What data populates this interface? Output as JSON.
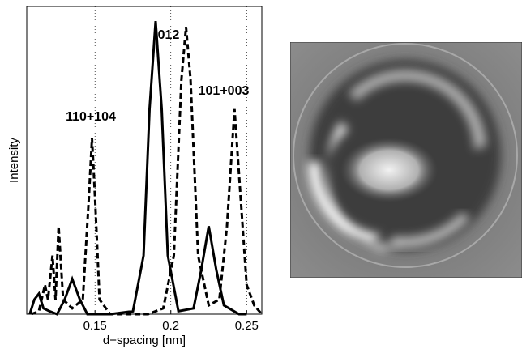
{
  "chart_data": {
    "type": "line",
    "xlabel": "d−spacing [nm]",
    "ylabel": "Intensity",
    "xlim": [
      0.105,
      0.26
    ],
    "ylim": [
      0,
      1.05
    ],
    "xticks": [
      0.15,
      0.2,
      0.25
    ],
    "grid": true,
    "annotations": [
      "110+104",
      "012",
      "101+003"
    ],
    "series": [
      {
        "color": "#000000",
        "dash": "solid",
        "x": [
          0.107,
          0.11,
          0.113,
          0.116,
          0.12,
          0.125,
          0.13,
          0.135,
          0.14,
          0.145,
          0.16,
          0.175,
          0.182,
          0.186,
          0.19,
          0.194,
          0.198,
          0.205,
          0.215,
          0.22,
          0.225,
          0.23,
          0.235,
          0.245,
          0.25
        ],
        "values": [
          0.0,
          0.05,
          0.07,
          0.02,
          0.01,
          0.0,
          0.05,
          0.12,
          0.05,
          0.0,
          0.0,
          0.01,
          0.2,
          0.7,
          1.0,
          0.7,
          0.2,
          0.01,
          0.02,
          0.15,
          0.3,
          0.15,
          0.03,
          0.0,
          0.0
        ]
      },
      {
        "color": "#000000",
        "dash": "dashed",
        "x": [
          0.108,
          0.113,
          0.117,
          0.119,
          0.122,
          0.124,
          0.126,
          0.129,
          0.135,
          0.142,
          0.146,
          0.148,
          0.15,
          0.153,
          0.16,
          0.185,
          0.195,
          0.202,
          0.207,
          0.21,
          0.213,
          0.218,
          0.225,
          0.232,
          0.237,
          0.242,
          0.246,
          0.25,
          0.255,
          0.26
        ],
        "values": [
          0.0,
          0.01,
          0.1,
          0.05,
          0.2,
          0.05,
          0.3,
          0.05,
          0.02,
          0.05,
          0.4,
          0.6,
          0.4,
          0.05,
          0.0,
          0.0,
          0.02,
          0.2,
          0.8,
          0.98,
          0.8,
          0.2,
          0.03,
          0.05,
          0.3,
          0.7,
          0.4,
          0.1,
          0.03,
          0.0
        ]
      }
    ]
  }
}
